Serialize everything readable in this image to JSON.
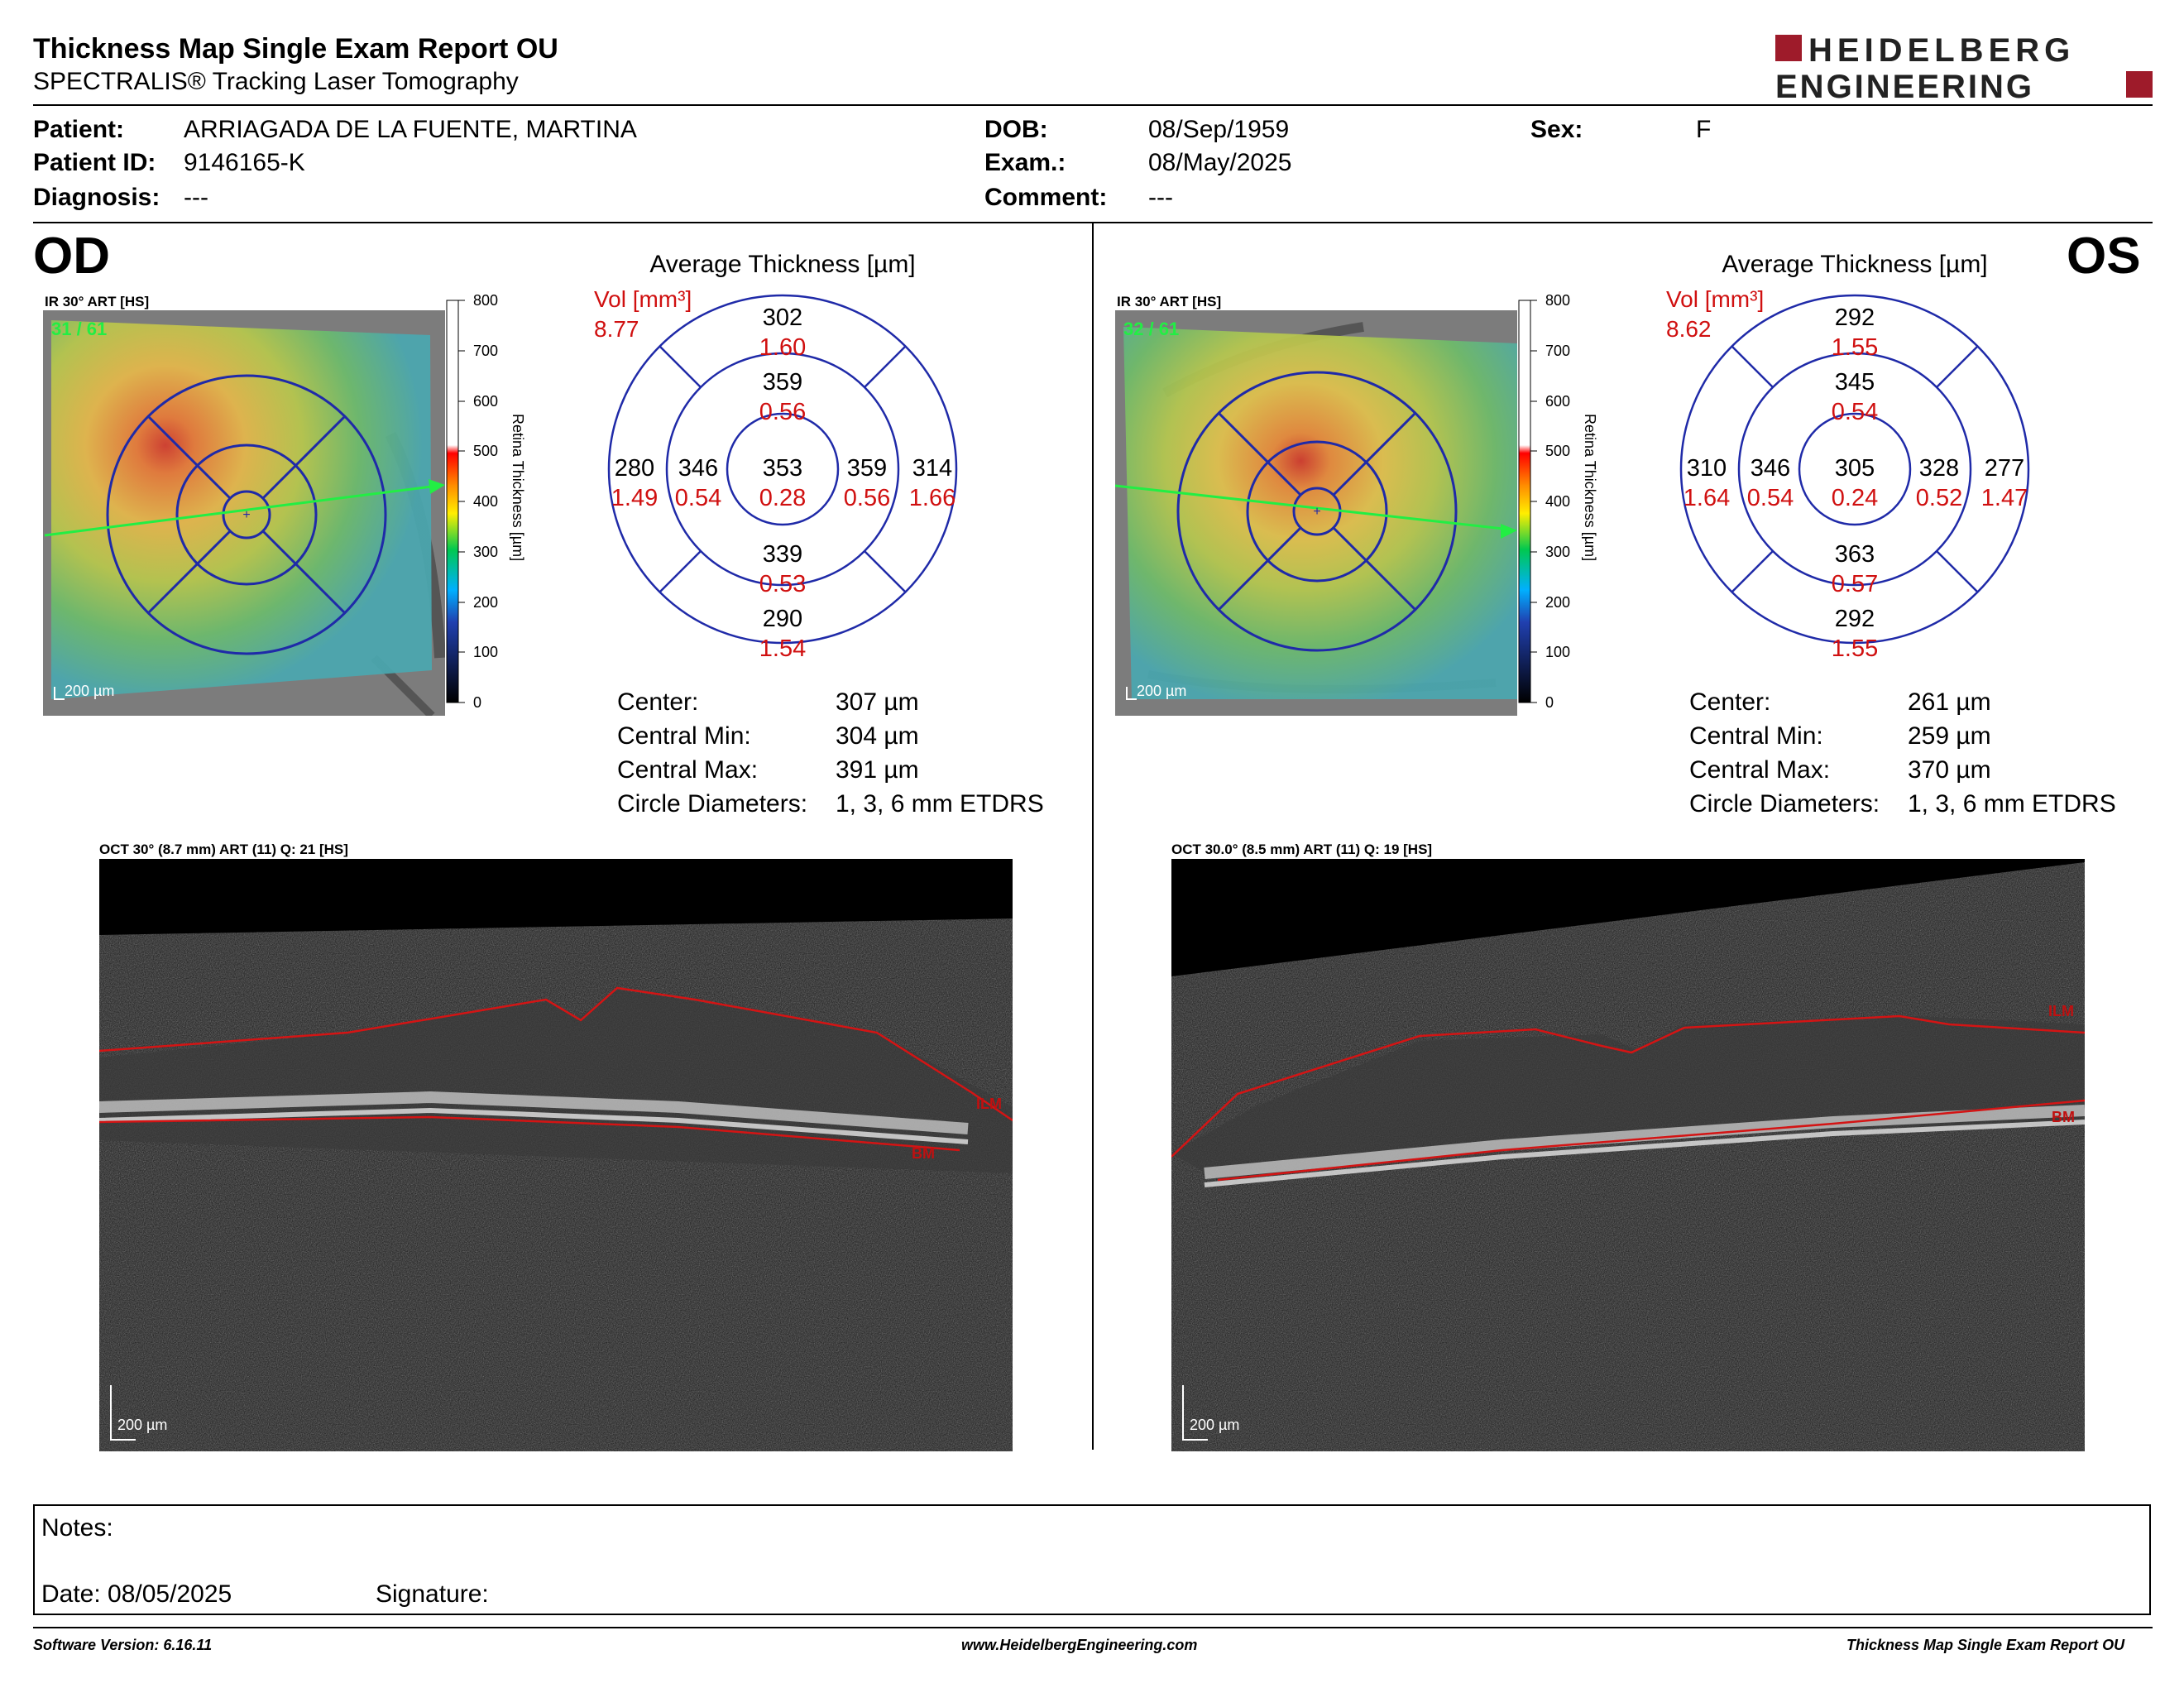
{
  "header": {
    "title": "Thickness Map Single Exam Report OU",
    "subtitle": "SPECTRALIS® Tracking Laser Tomography",
    "logo_line1": "HEIDELBERG",
    "logo_line2": "ENGINEERING",
    "brand_color": "#9e1b2a"
  },
  "patient": {
    "patient_label": "Patient:",
    "patient_value": "ARRIAGADA DE LA FUENTE, MARTINA",
    "id_label": "Patient ID:",
    "id_value": "9146165-K",
    "diagnosis_label": "Diagnosis:",
    "diagnosis_value": "---",
    "dob_label": "DOB:",
    "dob_value": "08/Sep/1959",
    "exam_label": "Exam.:",
    "exam_value": "08/May/2025",
    "comment_label": "Comment:",
    "comment_value": "---",
    "sex_label": "Sex:",
    "sex_value": "F"
  },
  "scale": {
    "ticks": [
      "800",
      "700",
      "600",
      "500",
      "400",
      "300",
      "200",
      "100",
      "0"
    ],
    "title": "Retina  Thickness [µm]"
  },
  "od": {
    "eye": "OD",
    "ir_label": "IR 30° ART [HS]",
    "ir_counter": "31 / 61",
    "ir_scalebar": "200 µm",
    "grid_title": "Average Thickness [µm]",
    "vol_label": "Vol [mm³]",
    "vol_total": "8.77",
    "sectors": {
      "outer_top": {
        "t": "302",
        "v": "1.60"
      },
      "inner_top": {
        "t": "359",
        "v": "0.56"
      },
      "outer_left": {
        "t": "280",
        "v": "1.49"
      },
      "inner_left": {
        "t": "346",
        "v": "0.54"
      },
      "center": {
        "t": "353",
        "v": "0.28"
      },
      "inner_right": {
        "t": "359",
        "v": "0.56"
      },
      "outer_right": {
        "t": "314",
        "v": "1.66"
      },
      "inner_bottom": {
        "t": "339",
        "v": "0.53"
      },
      "outer_bottom": {
        "t": "290",
        "v": "1.54"
      }
    },
    "stats": {
      "center_label": "Center:",
      "center_value": "307 µm",
      "min_label": "Central Min:",
      "min_value": "304 µm",
      "max_label": "Central Max:",
      "max_value": "391 µm",
      "diam_label": "Circle Diameters:",
      "diam_value": "1, 3, 6 mm ETDRS"
    },
    "oct_label": "OCT 30° (8.7 mm) ART (11) Q: 21 [HS]",
    "oct_scalebar": "200 µm",
    "ilm": "ILM",
    "bm": "BM"
  },
  "os": {
    "eye": "OS",
    "ir_label": "IR 30° ART [HS]",
    "ir_counter": "32 / 61",
    "ir_scalebar": "200 µm",
    "grid_title": "Average Thickness [µm]",
    "vol_label": "Vol [mm³]",
    "vol_total": "8.62",
    "sectors": {
      "outer_top": {
        "t": "292",
        "v": "1.55"
      },
      "inner_top": {
        "t": "345",
        "v": "0.54"
      },
      "outer_left": {
        "t": "310",
        "v": "1.64"
      },
      "inner_left": {
        "t": "346",
        "v": "0.54"
      },
      "center": {
        "t": "305",
        "v": "0.24"
      },
      "inner_right": {
        "t": "328",
        "v": "0.52"
      },
      "outer_right": {
        "t": "277",
        "v": "1.47"
      },
      "inner_bottom": {
        "t": "363",
        "v": "0.57"
      },
      "outer_bottom": {
        "t": "292",
        "v": "1.55"
      }
    },
    "stats": {
      "center_label": "Center:",
      "center_value": "261 µm",
      "min_label": "Central Min:",
      "min_value": "259 µm",
      "max_label": "Central Max:",
      "max_value": "370 µm",
      "diam_label": "Circle Diameters:",
      "diam_value": "1, 3, 6 mm ETDRS"
    },
    "oct_label": "OCT 30.0° (8.5 mm) ART (11) Q: 19 [HS]",
    "oct_scalebar": "200 µm",
    "ilm": "ILM",
    "bm": "BM"
  },
  "notes": {
    "notes_label": "Notes:",
    "date_label": "Date: 08/05/2025",
    "signature_label": "Signature:"
  },
  "footer": {
    "version": "Software Version: 6.16.11",
    "url": "www.HeidelbergEngineering.com",
    "report": "Thickness Map Single Exam Report OU"
  }
}
